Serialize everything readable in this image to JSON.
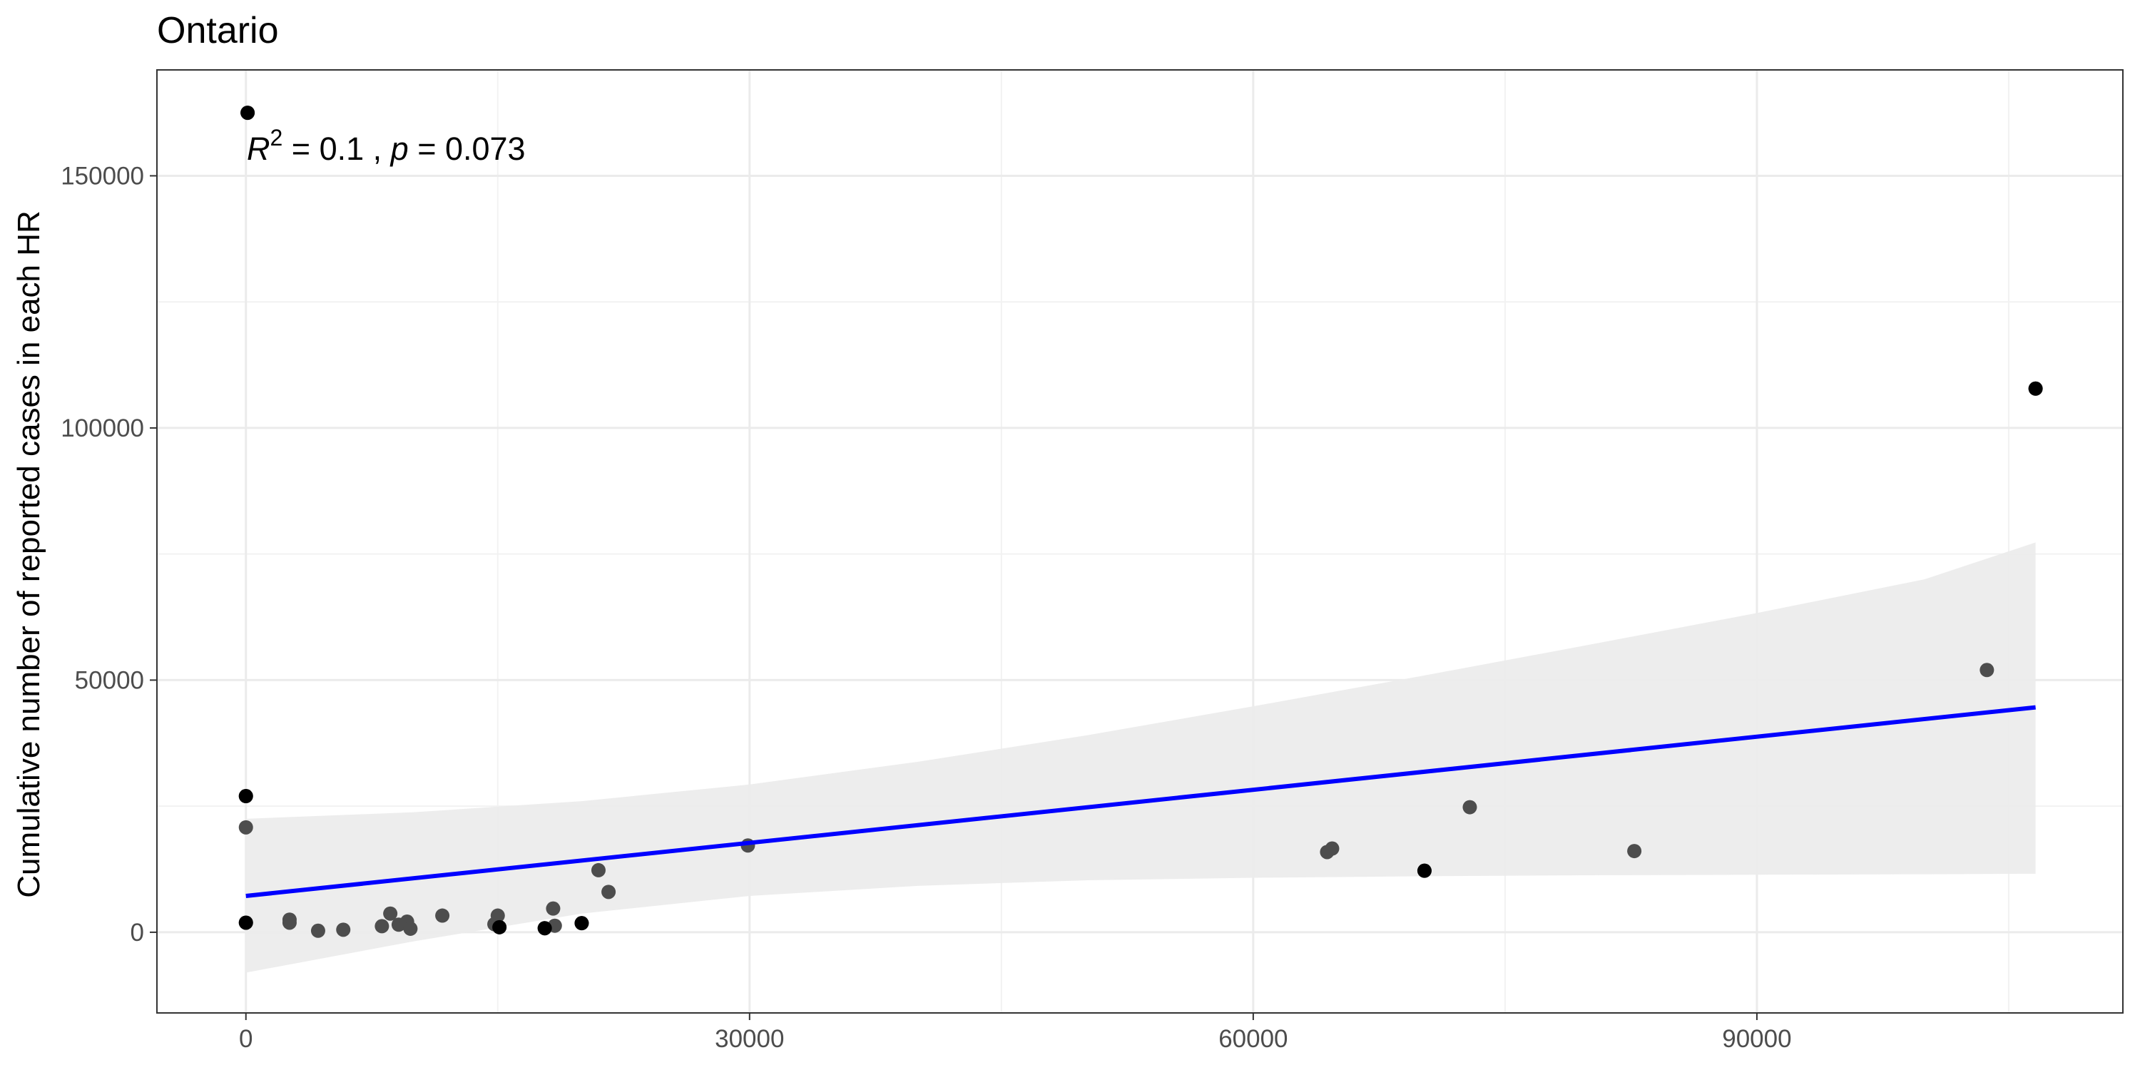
{
  "chart_data": {
    "type": "scatter",
    "title": "Ontario",
    "xlabel": "",
    "ylabel": "Cumulative number of reported cases in each HR",
    "xlim": [
      -5300,
      111800
    ],
    "ylim": [
      -16000,
      171000
    ],
    "x_ticks": [
      0,
      30000,
      60000,
      90000
    ],
    "y_ticks": [
      0,
      50000,
      100000,
      150000
    ],
    "x_tick_labels": [
      "0",
      "30000",
      "60000",
      "90000"
    ],
    "y_tick_labels": [
      "0",
      "50000",
      "100000",
      "150000"
    ],
    "grid": true,
    "annotation": {
      "r_symbol": "R",
      "r_exponent": "2",
      "r_value": " = 0.1",
      "separator": " , ",
      "p_symbol": "p",
      "p_value": " = 0.073"
    },
    "points": [
      {
        "x": 100,
        "y": 162500
      },
      {
        "x": 106600,
        "y": 107800
      },
      {
        "x": 103700,
        "y": 52000
      },
      {
        "x": 0,
        "y": 27000
      },
      {
        "x": 0,
        "y": 20800
      },
      {
        "x": 0,
        "y": 1900
      },
      {
        "x": 2600,
        "y": 2500
      },
      {
        "x": 2600,
        "y": 1900
      },
      {
        "x": 4300,
        "y": 300
      },
      {
        "x": 5800,
        "y": 500
      },
      {
        "x": 8100,
        "y": 1200
      },
      {
        "x": 8600,
        "y": 3700
      },
      {
        "x": 9100,
        "y": 1500
      },
      {
        "x": 9600,
        "y": 2100
      },
      {
        "x": 9800,
        "y": 700
      },
      {
        "x": 11700,
        "y": 3300
      },
      {
        "x": 14800,
        "y": 1600
      },
      {
        "x": 15000,
        "y": 3300
      },
      {
        "x": 15100,
        "y": 1000
      },
      {
        "x": 17800,
        "y": 800
      },
      {
        "x": 18300,
        "y": 4700
      },
      {
        "x": 18400,
        "y": 1300
      },
      {
        "x": 20000,
        "y": 1800
      },
      {
        "x": 21000,
        "y": 12300
      },
      {
        "x": 21600,
        "y": 8000
      },
      {
        "x": 29900,
        "y": 17200
      },
      {
        "x": 64400,
        "y": 15900
      },
      {
        "x": 64700,
        "y": 16600
      },
      {
        "x": 70200,
        "y": 12200
      },
      {
        "x": 72900,
        "y": 24800
      },
      {
        "x": 82700,
        "y": 16100
      }
    ],
    "fit_line": {
      "x": [
        0,
        106600
      ],
      "y": [
        7200,
        44600
      ],
      "color": "#0000ff"
    },
    "confidence_band": {
      "color": "#ebebeb",
      "x": [
        0,
        10000,
        20000,
        30000,
        40000,
        50000,
        60000,
        70000,
        80000,
        90000,
        100000,
        106600
      ],
      "upper": [
        22500,
        23800,
        26000,
        29300,
        33800,
        39000,
        44800,
        50800,
        57000,
        63300,
        70000,
        77300
      ],
      "lower": [
        -8000,
        -1800,
        3700,
        7200,
        9200,
        10300,
        10800,
        11100,
        11300,
        11400,
        11500,
        11600
      ]
    },
    "colors": {
      "point": "#000000",
      "point_overlap": "#4d4d4d",
      "grid_major": "#ebebeb",
      "grid_minor": "#f2f2f2",
      "panel_border": "#333333"
    }
  }
}
